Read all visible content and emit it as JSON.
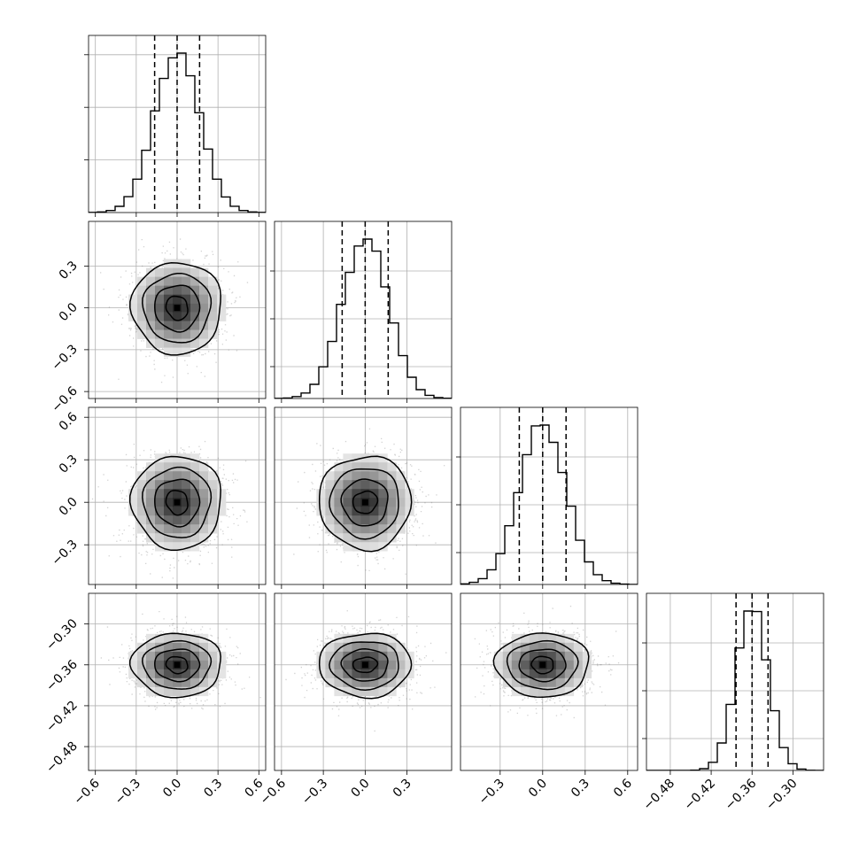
{
  "chart_data": {
    "type": "corner",
    "parameters": 4,
    "grid": true,
    "quantile_lines": "dashed",
    "axes": [
      {
        "range": [
          -0.65,
          0.65
        ],
        "ticks": [
          -0.6,
          -0.3,
          0.0,
          0.3,
          0.6
        ],
        "tick_labels": [
          "−0.6",
          "−0.3",
          "0.0",
          "0.3",
          "0.6"
        ],
        "mean": 0.0,
        "sd": 0.165,
        "quantiles": [
          -0.165,
          0.0,
          0.165
        ]
      },
      {
        "range": [
          -0.65,
          0.62
        ],
        "ticks": [
          -0.6,
          -0.3,
          0.0,
          0.3
        ],
        "tick_labels": [
          "−0.6",
          "−0.3",
          "0.0",
          "0.3"
        ],
        "mean": 0.0,
        "sd": 0.165,
        "quantiles": [
          -0.165,
          0.0,
          0.165
        ]
      },
      {
        "range": [
          -0.58,
          0.67
        ],
        "ticks": [
          -0.3,
          0.0,
          0.3,
          0.6
        ],
        "tick_labels": [
          "−0.3",
          "0.0",
          "0.3",
          "0.6"
        ],
        "mean": 0.0,
        "sd": 0.165,
        "quantiles": [
          -0.165,
          0.0,
          0.165
        ]
      },
      {
        "range": [
          -0.515,
          -0.255
        ],
        "ticks": [
          -0.48,
          -0.42,
          -0.36,
          -0.3
        ],
        "tick_labels": [
          "−0.48",
          "−0.42",
          "−0.36",
          "−0.30"
        ],
        "mean": -0.36,
        "sd": 0.0235,
        "quantiles": [
          -0.3835,
          -0.36,
          -0.3365
        ]
      }
    ],
    "histogram_y_ticks": [
      {
        "ticks": [
          0.33,
          0.66,
          0.99
        ]
      },
      {
        "ticks": [
          0.2,
          0.5,
          0.8
        ]
      },
      {
        "ticks": [
          0.2,
          0.5,
          0.8
        ]
      },
      {
        "ticks": [
          0.2,
          0.5,
          0.8
        ]
      }
    ],
    "contour_levels_sigma": [
      0.5,
      1.0,
      1.5,
      2.0
    ],
    "colors": {
      "line": "#000000",
      "points": "#7f7f7f",
      "grid": "#b0b0b0"
    }
  }
}
